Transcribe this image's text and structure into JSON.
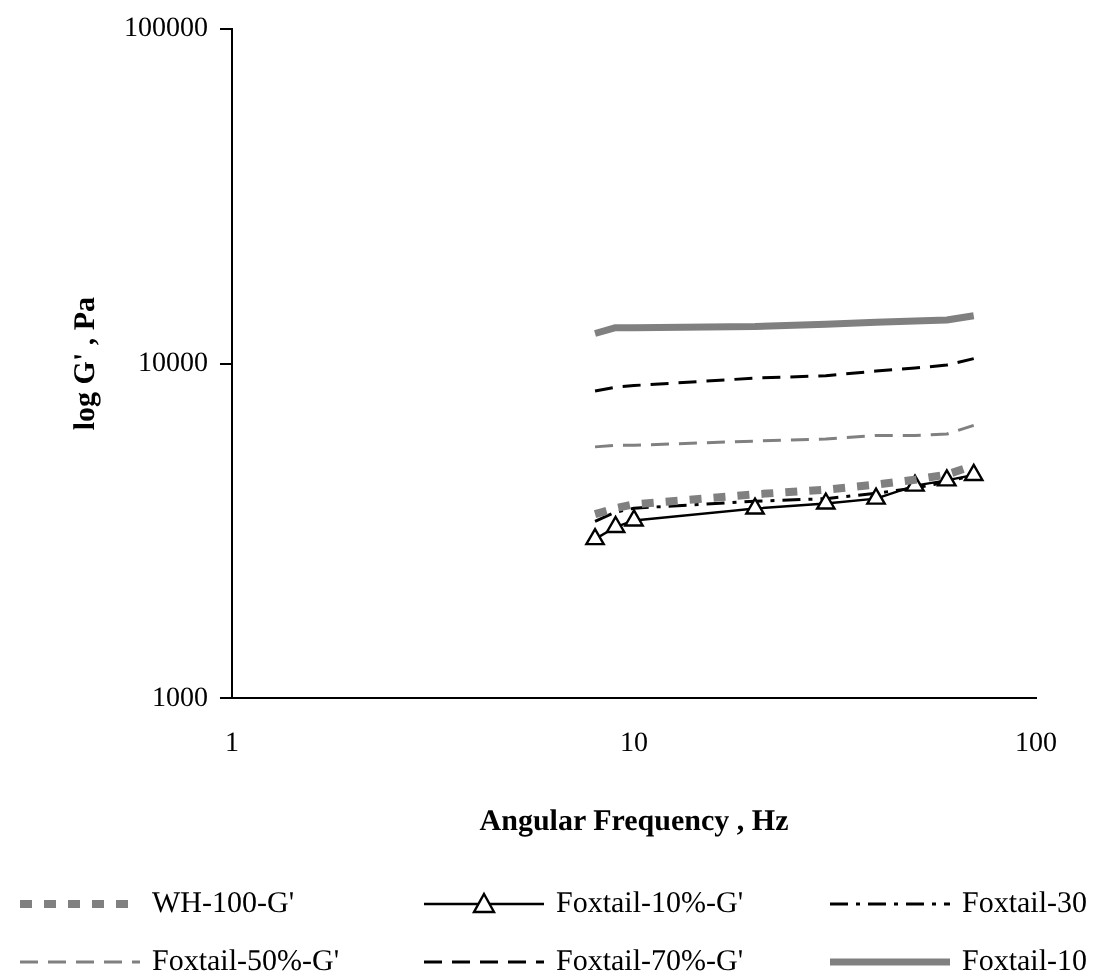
{
  "chart_data": {
    "type": "line",
    "xlabel": "Angular Frequency , Hz",
    "ylabel": "log G' , Pa",
    "log": "xy",
    "x": [
      8,
      9,
      10,
      20,
      30,
      40,
      50,
      60,
      70
    ],
    "xlim": [
      1,
      100
    ],
    "xticks": [
      1,
      10,
      100
    ],
    "ylim": [
      1000,
      100000
    ],
    "yticks": [
      1000,
      10000,
      100000
    ],
    "grid": false,
    "legend": "bottom",
    "series": [
      {
        "name": "WH-100-G'",
        "color": "#808080",
        "line_style": "dotted",
        "marker": "none",
        "values": [
          3550,
          3700,
          3800,
          4070,
          4200,
          4350,
          4500,
          4660,
          4960
        ]
      },
      {
        "name": "Foxtail-10%-G'",
        "color": "#000000",
        "line_style": "solid",
        "marker": "triangle",
        "values": [
          2990,
          3250,
          3400,
          3690,
          3820,
          3950,
          4320,
          4480,
          4650
        ]
      },
      {
        "name": "Foxtail-30",
        "color": "#000000",
        "line_style": "dashdot",
        "marker": "none",
        "values": [
          3380,
          3600,
          3700,
          3880,
          3950,
          4100,
          4250,
          4430,
          4650
        ]
      },
      {
        "name": "Foxtail-50%-G'",
        "color": "#808080",
        "line_style": "dashed",
        "marker": "none",
        "values": [
          5640,
          5700,
          5700,
          5870,
          5950,
          6100,
          6100,
          6160,
          6540
        ]
      },
      {
        "name": "Foxtail-70%-G'",
        "color": "#000000",
        "line_style": "dashed",
        "marker": "none",
        "values": [
          8280,
          8500,
          8600,
          9050,
          9200,
          9500,
          9700,
          9900,
          10350
        ]
      },
      {
        "name": "Foxtail-10",
        "color": "#808080",
        "line_style": "solid",
        "marker": "none",
        "values": [
          12300,
          12800,
          12800,
          12900,
          13100,
          13300,
          13400,
          13500,
          13900
        ]
      }
    ]
  }
}
